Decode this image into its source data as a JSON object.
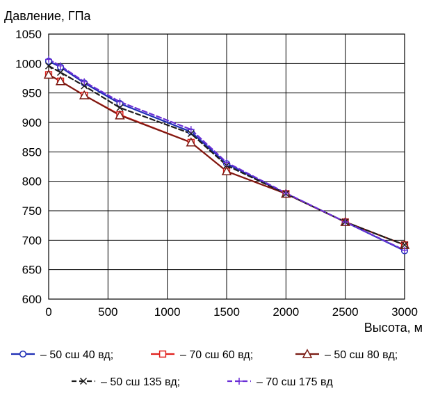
{
  "chart_data": {
    "type": "line",
    "title": "",
    "ylabel": "Давление, ГПа",
    "xlabel": "Высота, м",
    "xlim": [
      0,
      3000
    ],
    "ylim": [
      600,
      1050
    ],
    "xticks": [
      "0",
      "500",
      "1000",
      "1500",
      "2000",
      "2500",
      "3000"
    ],
    "yticks": [
      "600",
      "650",
      "700",
      "750",
      "800",
      "850",
      "900",
      "950",
      "1000",
      "1050"
    ],
    "grid": true,
    "legend_position": "bottom",
    "series": [
      {
        "name": "– 50 сш 40 вд;",
        "color": "#1f2fb5",
        "marker": "circle",
        "x": [
          0,
          100,
          300,
          600,
          1200,
          1500,
          2000,
          2500,
          3000
        ],
        "y": [
          1004,
          994,
          967,
          932,
          884,
          830,
          779,
          731,
          682
        ]
      },
      {
        "name": "– 70 сш 60 вд;",
        "color": "#e0201c",
        "marker": "square",
        "x": [
          0,
          100,
          300,
          600,
          1200,
          1500,
          2000,
          2500,
          3000
        ],
        "y": [
          981,
          970,
          946,
          913,
          866,
          817,
          779,
          731,
          692
        ]
      },
      {
        "name": "– 50 сш 80 вд;",
        "color": "#7a1a12",
        "marker": "triangle",
        "x": [
          0,
          100,
          300,
          600,
          1200,
          1500,
          2000,
          2500,
          3000
        ],
        "y": [
          981,
          970,
          946,
          912,
          866,
          817,
          779,
          731,
          692
        ]
      },
      {
        "name": "– 50 сш 135 вд;",
        "color": "#1c1c1c",
        "marker": "x",
        "x": [
          0,
          100,
          300,
          600,
          1200,
          1500,
          2000,
          2500,
          3000
        ],
        "y": [
          996,
          985,
          962,
          925,
          881,
          827,
          779,
          731,
          692
        ]
      },
      {
        "name": "– 70 сш 175 вд",
        "color": "#6a2fd6",
        "marker": "plus",
        "x": [
          0,
          100,
          300,
          600,
          1200,
          1500,
          2000,
          2500,
          3000
        ],
        "y": [
          1007,
          996,
          969,
          935,
          888,
          832,
          780,
          731,
          683
        ]
      }
    ]
  }
}
